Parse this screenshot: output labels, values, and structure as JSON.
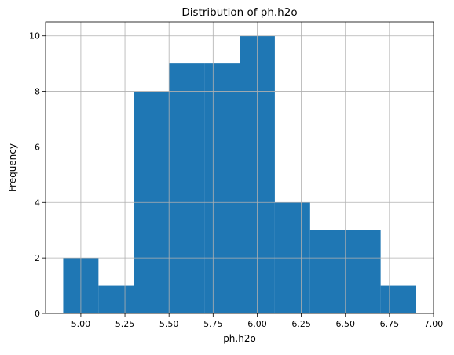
{
  "chart_data": {
    "type": "bar",
    "subtype": "histogram",
    "title": "Distribution of ph.h2o",
    "xlabel": "ph.h2o",
    "ylabel": "Frequency",
    "bins": [
      {
        "x0": 4.9,
        "x1": 5.1,
        "count": 2
      },
      {
        "x0": 5.1,
        "x1": 5.3,
        "count": 1
      },
      {
        "x0": 5.3,
        "x1": 5.5,
        "count": 8
      },
      {
        "x0": 5.5,
        "x1": 5.7,
        "count": 9
      },
      {
        "x0": 5.7,
        "x1": 5.9,
        "count": 9
      },
      {
        "x0": 5.9,
        "x1": 6.1,
        "count": 10
      },
      {
        "x0": 6.1,
        "x1": 6.3,
        "count": 4
      },
      {
        "x0": 6.3,
        "x1": 6.5,
        "count": 3
      },
      {
        "x0": 6.5,
        "x1": 6.7,
        "count": 3
      },
      {
        "x0": 6.7,
        "x1": 6.9,
        "count": 1
      }
    ],
    "xlim": [
      4.8,
      7.0
    ],
    "ylim": [
      0,
      10.5
    ],
    "x_ticks": [
      "5.00",
      "5.25",
      "5.50",
      "5.75",
      "6.00",
      "6.25",
      "6.50",
      "6.75",
      "7.00"
    ],
    "y_ticks": [
      "0",
      "2",
      "4",
      "6",
      "8",
      "10"
    ],
    "grid": true,
    "bar_color": "#1f77b4",
    "grid_color": "#b0b0b0"
  }
}
